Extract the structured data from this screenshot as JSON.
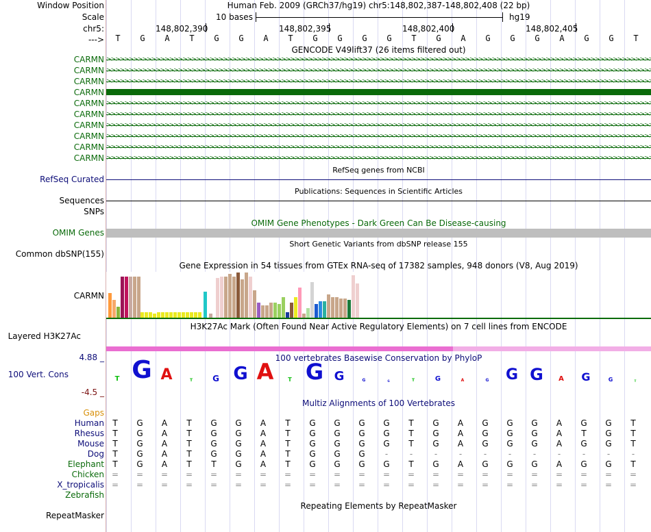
{
  "header": {
    "window_position_label": "Window Position",
    "scale_label": "Scale",
    "chrom_label": "chr5:",
    "strand_label": "--->",
    "title": "Human Feb. 2009 (GRCh37/hg19)   chr5:148,802,387-148,802,408 (22 bp)",
    "scale_text": "10 bases",
    "assembly": "hg19",
    "ruler_ticks": [
      "148,802,390",
      "148,802,395",
      "148,802,400",
      "148,802,405"
    ],
    "bases": [
      "T",
      "G",
      "A",
      "T",
      "G",
      "G",
      "A",
      "T",
      "G",
      "G",
      "G",
      "G",
      "T",
      "G",
      "A",
      "G",
      "G",
      "G",
      "A",
      "G",
      "G",
      "T"
    ]
  },
  "gencode": {
    "title": "GENCODE V49lift37 (26 items filtered out)",
    "gene_labels": [
      "CARMN",
      "CARMN",
      "CARMN",
      "CARMN",
      "CARMN",
      "CARMN",
      "CARMN",
      "CARMN",
      "CARMN",
      "CARMN"
    ],
    "color": "#0a6a0a"
  },
  "refseq": {
    "title": "RefSeq genes from NCBI",
    "label": "RefSeq Curated",
    "color": "#0c0c78"
  },
  "publications": {
    "title": "Publications: Sequences in Scientific Articles",
    "label": "Sequences",
    "label2": "SNPs"
  },
  "omim": {
    "title": "OMIM Gene Phenotypes - Dark Green Can Be Disease-causing",
    "label": "OMIM Genes",
    "color": "#0a6a0a",
    "bar_color": "#bebebe"
  },
  "dbsnp": {
    "title": "Short Genetic Variants from dbSNP release 155",
    "label": "Common dbSNP(155)"
  },
  "gtex": {
    "title": "Gene Expression in 54 tissues from GTEx RNA-seq of 17382 samples, 948 donors (V8, Aug 2019)",
    "label": "CARMN"
  },
  "h3k27ac": {
    "title": "H3K27Ac Mark (Often Found Near Active Regulatory Elements) on 7 cell lines from ENCODE",
    "label": "Layered H3K27Ac",
    "color": "#ea6ed1"
  },
  "phylop": {
    "title": "100 vertebrates Basewise Conservation by PhyloP",
    "label": "100 Vert. Cons",
    "max": "4.88 _",
    "min": "-4.5 _",
    "color": "#0c0c78"
  },
  "multiz": {
    "title": "Multiz Alignments of 100 Vertebrates",
    "gaps_label": "Gaps",
    "species": [
      {
        "name": "Human",
        "bases": [
          "T",
          "G",
          "A",
          "T",
          "G",
          "G",
          "A",
          "T",
          "G",
          "G",
          "G",
          "G",
          "T",
          "G",
          "A",
          "G",
          "G",
          "G",
          "A",
          "G",
          "G",
          "T"
        ]
      },
      {
        "name": "Rhesus",
        "bases": [
          "T",
          "G",
          "A",
          "T",
          "G",
          "G",
          "A",
          "T",
          "G",
          "G",
          "G",
          "G",
          "T",
          "G",
          "A",
          "G",
          "G",
          "G",
          "A",
          "T",
          "G",
          "T"
        ]
      },
      {
        "name": "Mouse",
        "bases": [
          "T",
          "G",
          "A",
          "T",
          "G",
          "G",
          "A",
          "T",
          "G",
          "G",
          "G",
          "G",
          "T",
          "G",
          "A",
          "G",
          "G",
          "G",
          "A",
          "G",
          "G",
          "T"
        ]
      },
      {
        "name": "Dog",
        "bases": [
          "T",
          "G",
          "A",
          "T",
          "G",
          "G",
          "A",
          "T",
          "G",
          "G",
          "G",
          "-",
          "-",
          "-",
          "-",
          "-",
          "-",
          "-",
          "-",
          "-",
          "-",
          "-"
        ]
      },
      {
        "name": "Elephant",
        "bases": [
          "T",
          "G",
          "A",
          "T",
          "T",
          "G",
          "A",
          "T",
          "G",
          "G",
          "G",
          "G",
          "T",
          "G",
          "A",
          "G",
          "G",
          "G",
          "A",
          "G",
          "G",
          "T"
        ]
      },
      {
        "name": "Chicken",
        "bases": [
          "=",
          "=",
          "=",
          "=",
          "=",
          "=",
          "=",
          "=",
          "=",
          "=",
          "=",
          "=",
          "=",
          "=",
          "=",
          "=",
          "=",
          "=",
          "=",
          "=",
          "=",
          "="
        ]
      },
      {
        "name": "X_tropicalis",
        "bases": [
          "=",
          "=",
          "=",
          "=",
          "=",
          "=",
          "=",
          "=",
          "=",
          "=",
          "=",
          "=",
          "=",
          "=",
          "=",
          "=",
          "=",
          "=",
          "=",
          "=",
          "=",
          "="
        ]
      },
      {
        "name": "Zebrafish",
        "bases": [
          "",
          "",
          "",
          "",
          "",
          "",
          "",
          "",
          "",
          "",
          "",
          "",
          "",
          "",
          "",
          "",
          "",
          "",
          "",
          "",
          "",
          ""
        ]
      }
    ]
  },
  "repeatmasker": {
    "title": "Repeating Elements by RepeatMasker",
    "label": "RepeatMasker"
  }
}
